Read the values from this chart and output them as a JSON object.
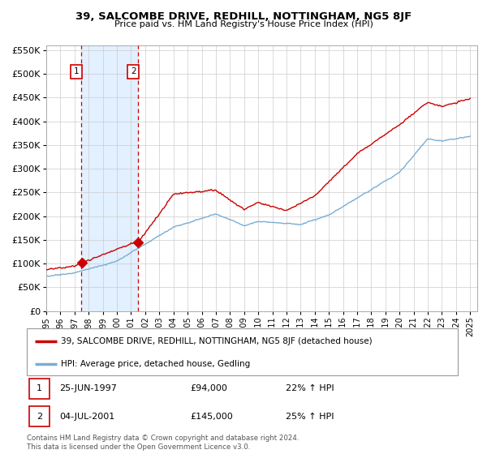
{
  "title": "39, SALCOMBE DRIVE, REDHILL, NOTTINGHAM, NG5 8JF",
  "subtitle": "Price paid vs. HM Land Registry's House Price Index (HPI)",
  "legend_line1": "39, SALCOMBE DRIVE, REDHILL, NOTTINGHAM, NG5 8JF (detached house)",
  "legend_line2": "HPI: Average price, detached house, Gedling",
  "annotation1_date": "25-JUN-1997",
  "annotation1_price": "£94,000",
  "annotation1_hpi": "22% ↑ HPI",
  "annotation2_date": "04-JUL-2001",
  "annotation2_price": "£145,000",
  "annotation2_hpi": "25% ↑ HPI",
  "footer": "Contains HM Land Registry data © Crown copyright and database right 2024.\nThis data is licensed under the Open Government Licence v3.0.",
  "red_color": "#cc0000",
  "blue_color": "#7aadd4",
  "shade_color": "#ddeeff",
  "marker_box_color": "#cc0000",
  "ylim_min": 0,
  "ylim_max": 560000,
  "purchase1_year": 1997.48,
  "purchase1_price": 94000,
  "purchase2_year": 2001.5,
  "purchase2_price": 145000
}
